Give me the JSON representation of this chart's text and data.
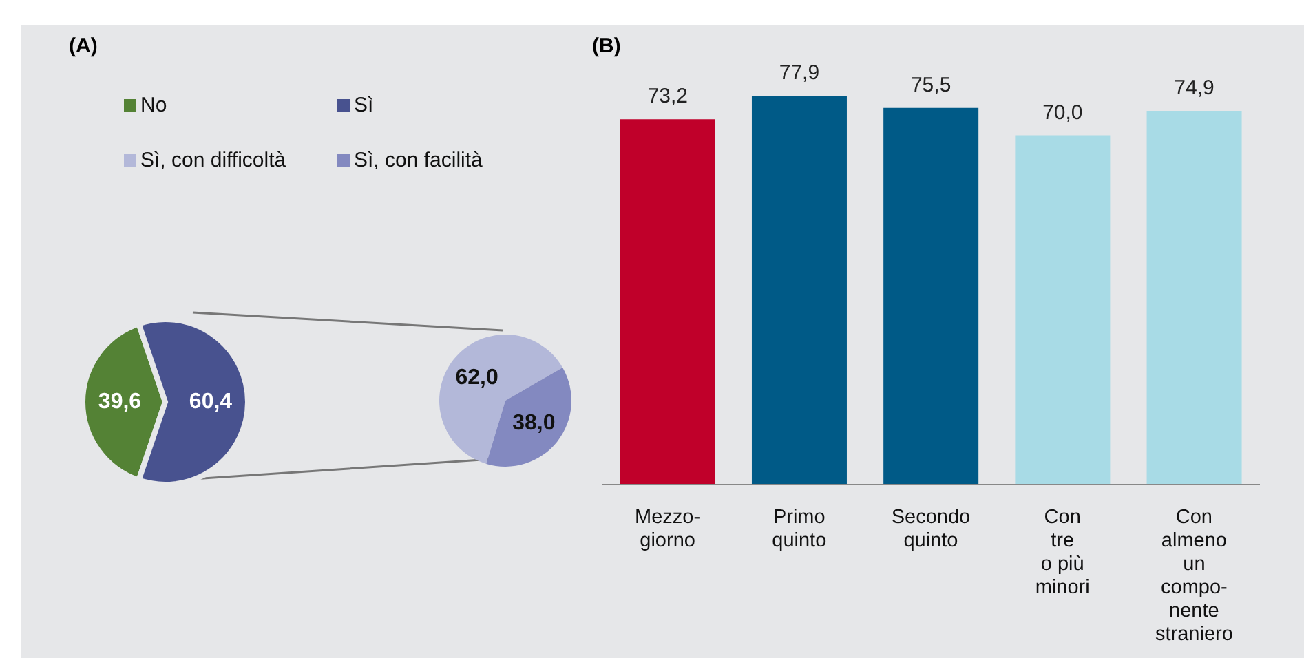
{
  "chart_data": [
    {
      "type": "pie",
      "title": "(A)",
      "categories": [
        "No",
        "Sì"
      ],
      "values": [
        39.6,
        60.4
      ],
      "colors": [
        "#548235",
        "#48528f"
      ],
      "value_labels": [
        "39,6",
        "60,4"
      ],
      "legend": "top"
    },
    {
      "type": "pie",
      "categories": [
        "Sì, con difficoltà",
        "Sì, con facilità"
      ],
      "values": [
        62.0,
        38.0
      ],
      "colors": [
        "#b3b8d9",
        "#8389c0"
      ],
      "value_labels": [
        "62,0",
        "38,0"
      ],
      "legend": "top"
    },
    {
      "type": "bar",
      "title": "(B)",
      "categories": [
        "Mezzo-\ngiorno",
        "Primo\nquinto",
        "Secondo\nquinto",
        "Con\ntre\no più\nminori",
        "Con\nalmeno\nun\ncompo-\nnente\nstraniero"
      ],
      "values": [
        73.2,
        77.9,
        75.5,
        70.0,
        74.9
      ],
      "colors": [
        "#c0002a",
        "#005a87",
        "#005a87",
        "#a8dbe6",
        "#a8dbe6"
      ],
      "value_labels": [
        "73,2",
        "77,9",
        "75,5",
        "70,0",
        "74,9"
      ]
    }
  ]
}
